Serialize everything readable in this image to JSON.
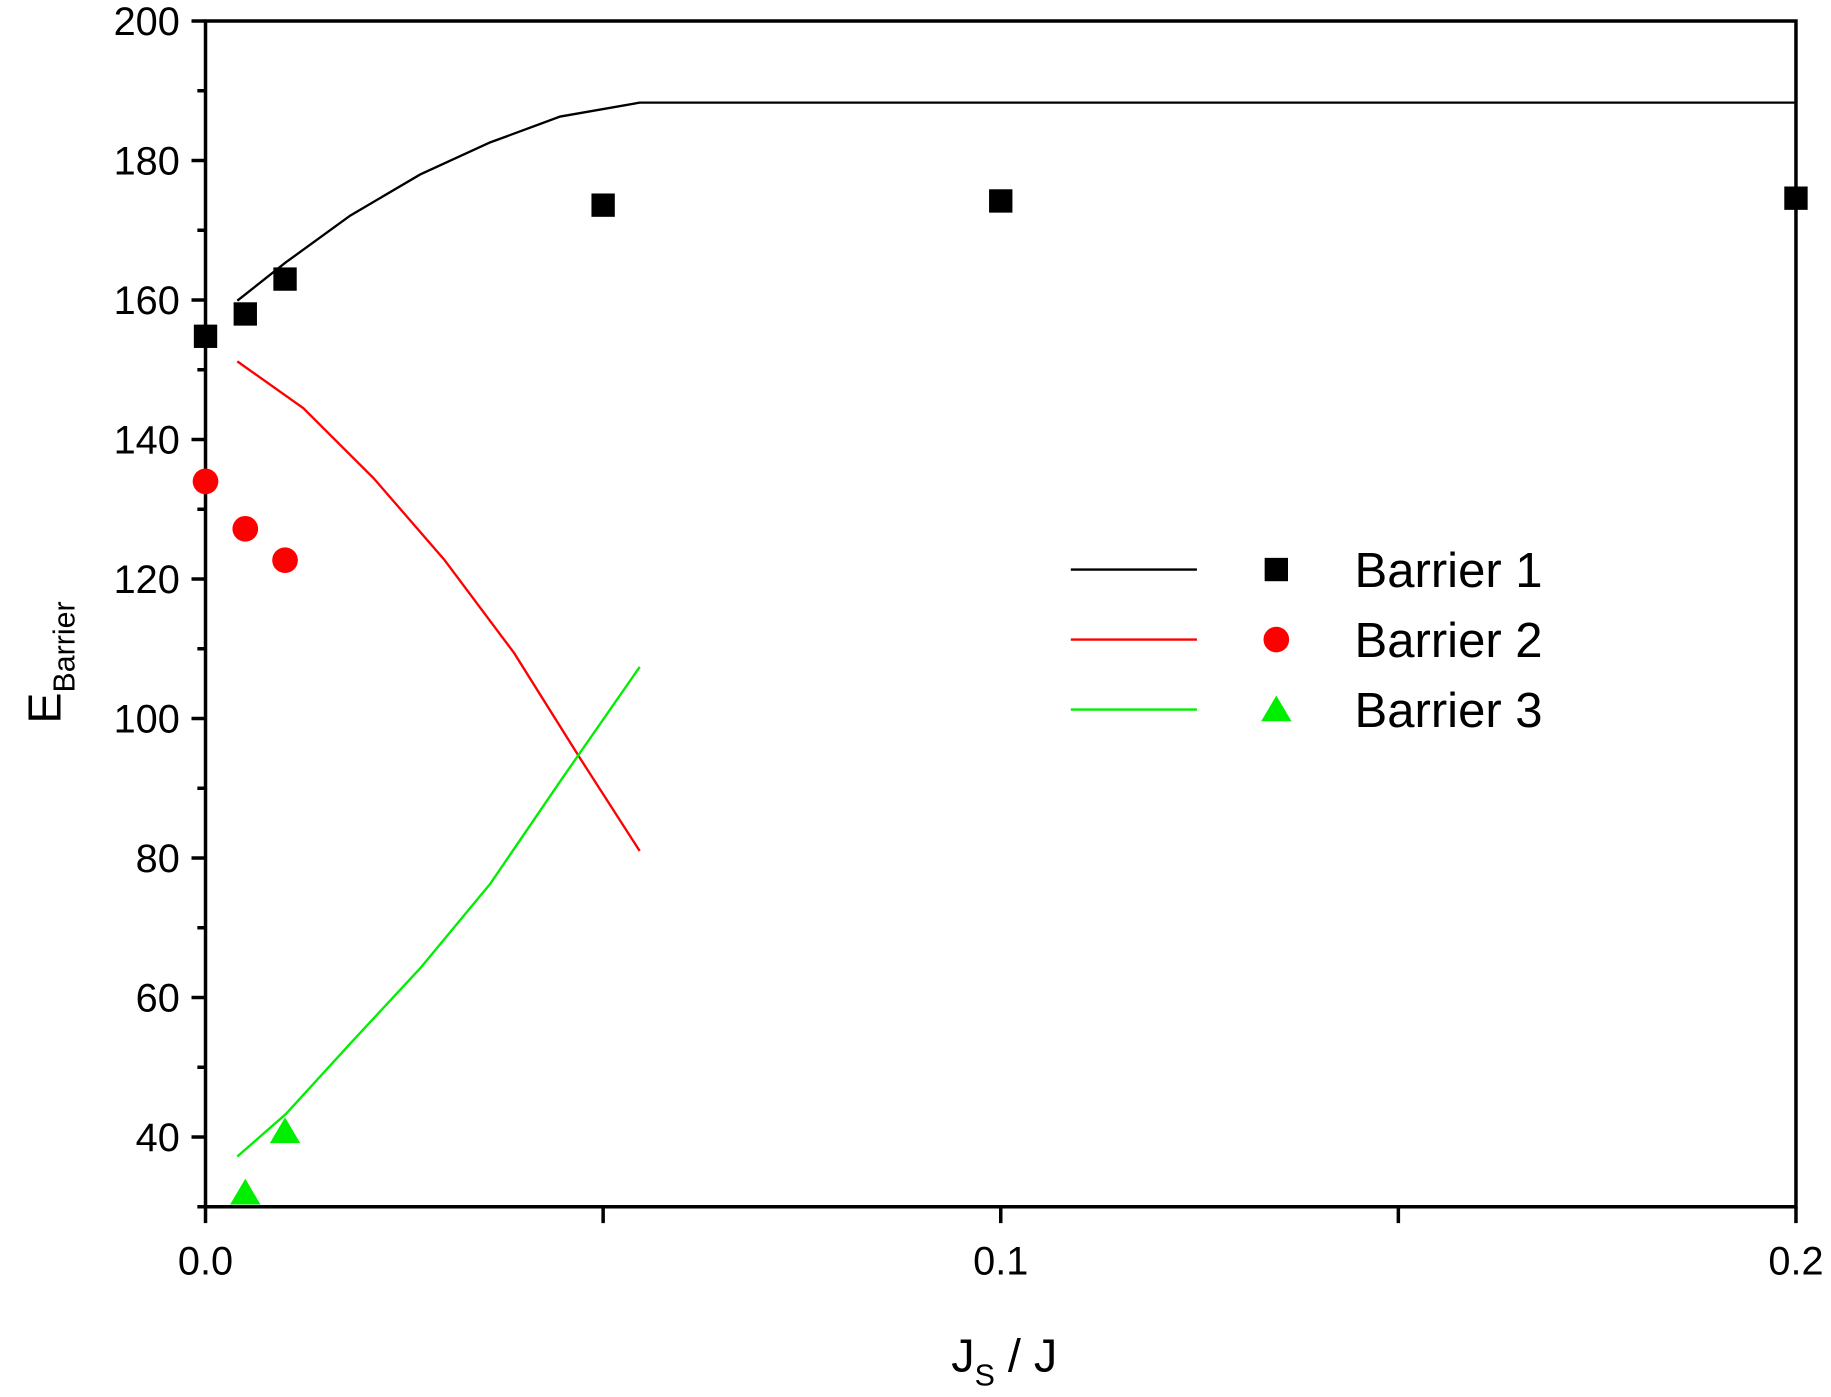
{
  "chart_data": {
    "type": "scatter",
    "x_label": {
      "text": "J",
      "subscript": "S",
      "suffix": " / J"
    },
    "y_label": {
      "text": "E",
      "subscript": "Barrier"
    },
    "xlim": [
      0,
      0.2
    ],
    "xticks": [
      {
        "value": 0,
        "label": "0.0"
      },
      0.1,
      0.2
    ],
    "x_minor_ticks": [
      0.05,
      0.15
    ],
    "ylim": [
      30,
      200
    ],
    "yticks": [
      40,
      60,
      80,
      100,
      120,
      140,
      160,
      180,
      200
    ],
    "y_minor_ticks": [
      30,
      50,
      70,
      90,
      110,
      130,
      150,
      170,
      190
    ],
    "legend": "right",
    "series": [
      {
        "name": "Barrier 1",
        "color": "#000000",
        "marker": "square",
        "x": [
          0,
          0.005,
          0.01,
          0.05,
          0.1,
          0.2
        ],
        "values": [
          154.8,
          158,
          163,
          173.6,
          174.2,
          174.6
        ],
        "fit_x": [
          0.004,
          0.0101,
          0.0182,
          0.027,
          0.0358,
          0.0446,
          0.0546,
          0.2
        ],
        "fit_values": [
          159.9,
          165.4,
          172.1,
          178,
          182.6,
          186.3,
          188.3,
          188.3
        ]
      },
      {
        "name": "Barrier 2",
        "color": "#ff0000",
        "marker": "circle",
        "x": [
          0,
          0.005,
          0.01
        ],
        "values": [
          134,
          127.2,
          122.7
        ],
        "fit_x": [
          0.004,
          0.0123,
          0.0211,
          0.03,
          0.0388,
          0.0471,
          0.0546
        ],
        "fit_values": [
          151.2,
          144.5,
          134.5,
          122.8,
          109.4,
          94.3,
          81
        ]
      },
      {
        "name": "Barrier 3",
        "color": "#00ee00",
        "marker": "triangle",
        "x": [
          0.005,
          0.01
        ],
        "values": [
          32,
          40.8
        ],
        "fit_x": [
          0.004,
          0.0101,
          0.0182,
          0.027,
          0.0358,
          0.0446,
          0.0546
        ],
        "fit_values": [
          37.2,
          43.3,
          53.4,
          64.2,
          76.3,
          91,
          107.4
        ]
      }
    ]
  }
}
